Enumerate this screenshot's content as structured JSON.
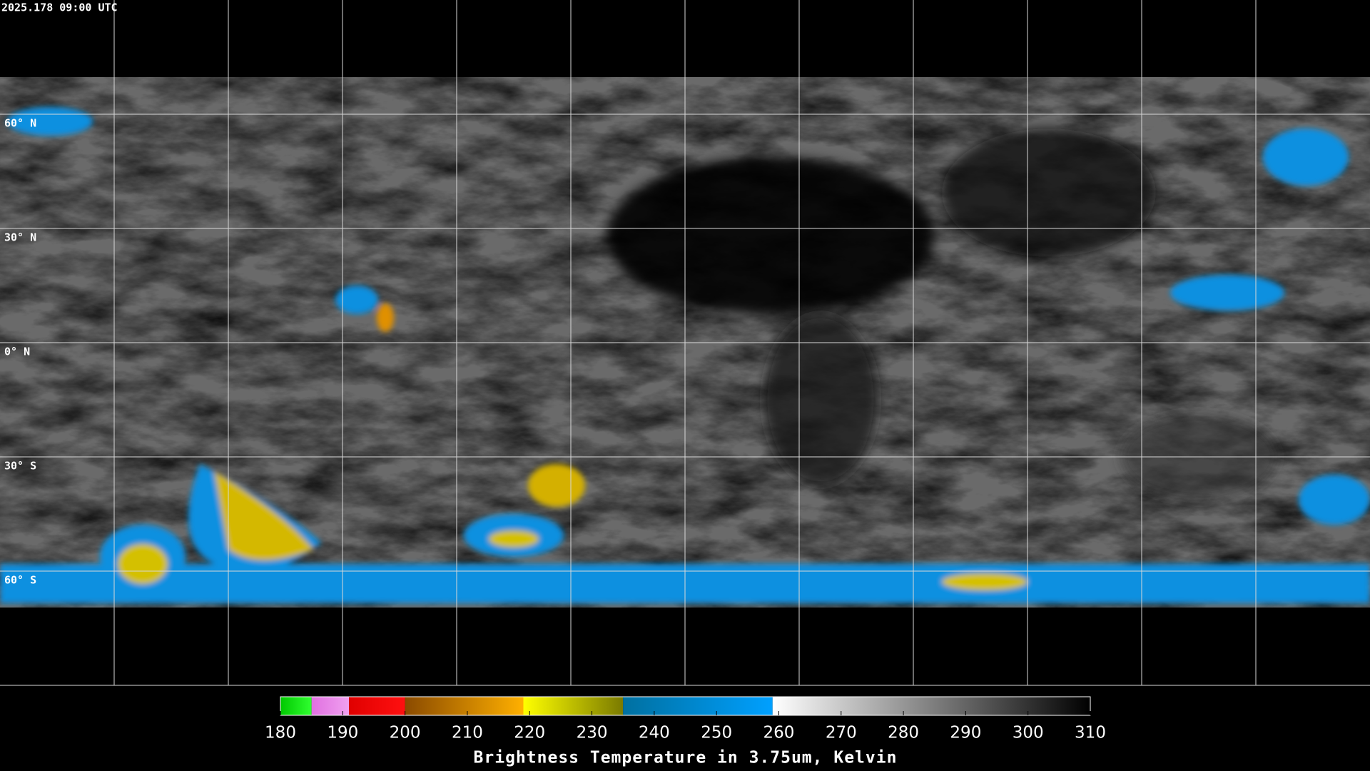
{
  "header": {
    "timestamp": "2025.178 09:00 UTC"
  },
  "map": {
    "latitude_labels": [
      "60° N",
      "30° N",
      "0° N",
      "30° S",
      "60° S"
    ]
  },
  "colorbar": {
    "title": "Brightness Temperature in 3.75um, Kelvin",
    "range": [
      180,
      310
    ],
    "ticks": [
      180,
      190,
      200,
      210,
      220,
      230,
      240,
      250,
      260,
      270,
      280,
      290,
      300,
      310
    ],
    "segments": [
      {
        "from": 180,
        "to": 185,
        "colors": [
          "#00c800",
          "#30ff30"
        ]
      },
      {
        "from": 185,
        "to": 191,
        "colors": [
          "#e070e0",
          "#f0a0f0"
        ]
      },
      {
        "from": 191,
        "to": 200,
        "colors": [
          "#e00000",
          "#ff1010"
        ]
      },
      {
        "from": 200,
        "to": 219,
        "colors": [
          "#8a4a00",
          "#ffb000"
        ]
      },
      {
        "from": 219,
        "to": 235,
        "colors": [
          "#ffff00",
          "#7a7a00"
        ]
      },
      {
        "from": 235,
        "to": 259,
        "colors": [
          "#0070a0",
          "#00a0ff"
        ]
      },
      {
        "from": 259,
        "to": 310,
        "colors": [
          "#ffffff",
          "#000000"
        ]
      }
    ]
  }
}
